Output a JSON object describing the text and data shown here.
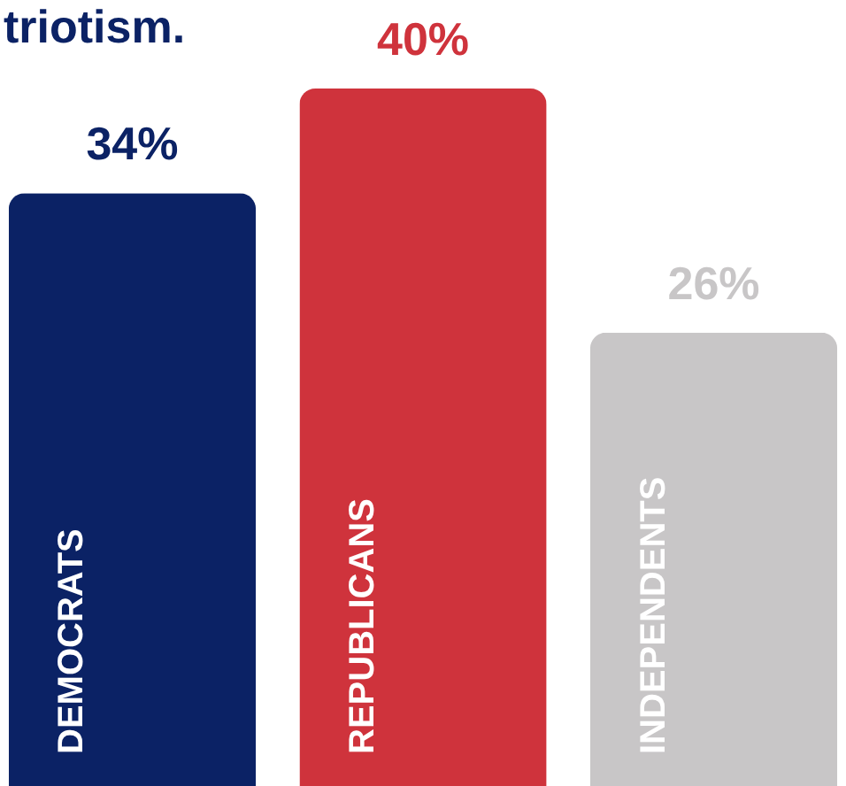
{
  "chart_data": {
    "type": "bar",
    "title": "triotism.",
    "categories": [
      "DEMOCRATS",
      "REPUBLICANS",
      "INDEPENDENTS"
    ],
    "values": [
      34,
      40,
      26
    ],
    "colors": [
      "#0b2265",
      "#cf333c",
      "#c8c6c7"
    ],
    "value_labels": [
      "34%",
      "40%",
      "26%"
    ]
  }
}
